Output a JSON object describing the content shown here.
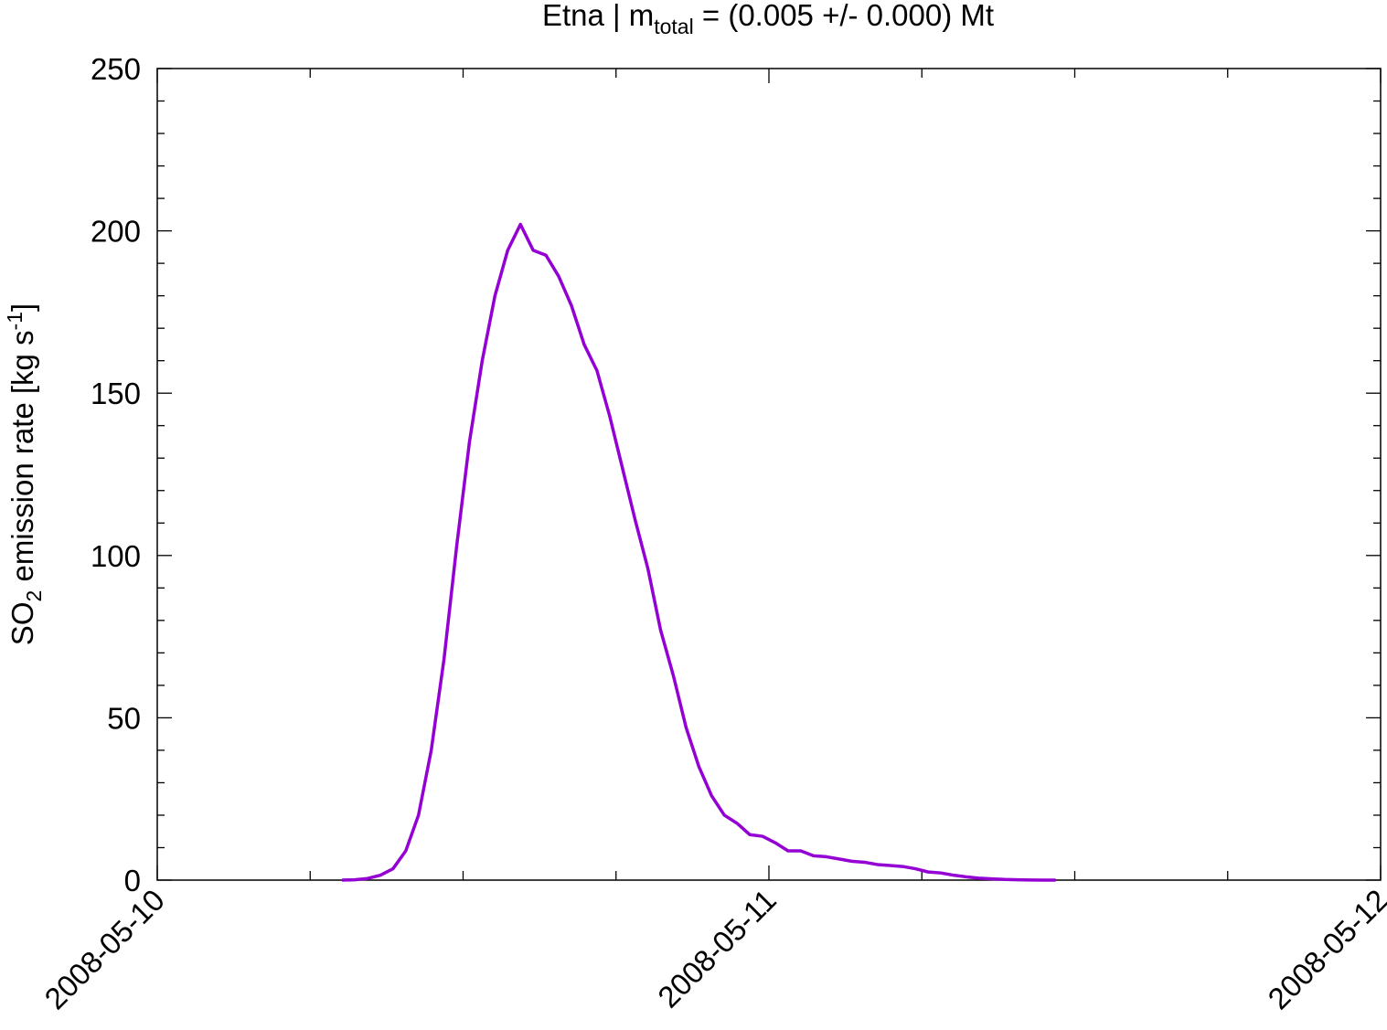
{
  "chart_data": {
    "type": "line",
    "title": [
      "Etna | m",
      "total",
      " = (0.005 +/- 0.000) Mt"
    ],
    "ylabel": [
      "SO",
      "2",
      " emission rate [kg s",
      "-1",
      "]"
    ],
    "color": "#9400d3",
    "x": [
      7.25,
      7.75,
      8.25,
      8.75,
      9.25,
      9.75,
      10.25,
      10.75,
      11.25,
      11.75,
      12.25,
      12.75,
      13.25,
      13.75,
      14.25,
      14.75,
      15.25,
      15.75,
      16.25,
      16.75,
      17.25,
      17.75,
      18.25,
      18.75,
      19.25,
      19.75,
      20.25,
      20.75,
      21.25,
      21.75,
      22.25,
      22.75,
      23.25,
      23.75,
      24.25,
      24.75,
      25.25,
      25.75,
      26.25,
      26.75,
      27.25,
      27.75,
      28.25,
      28.75,
      29.25,
      29.75,
      30.25,
      30.75,
      31.25,
      31.75,
      32.25,
      32.75,
      33.25,
      33.75,
      34.25,
      34.75,
      35.25
    ],
    "values": [
      0,
      0.1,
      0.5,
      1.5,
      3.5,
      9,
      20,
      40,
      68,
      103,
      135,
      160,
      180,
      194,
      202,
      194,
      192.5,
      186,
      177,
      165,
      157,
      143,
      127,
      111,
      96,
      77,
      63,
      47,
      35,
      26,
      20,
      17.5,
      14,
      13.5,
      11.5,
      9,
      9,
      7.5,
      7.2,
      6.5,
      5.8,
      5.5,
      4.8,
      4.5,
      4.2,
      3.5,
      2.5,
      2.2,
      1.5,
      1,
      0.6,
      0.4,
      0.2,
      0.1,
      0.05,
      0,
      0
    ],
    "xlim": [
      0,
      48
    ],
    "xticks": [
      {
        "value": 0,
        "label": "2008-05-10"
      },
      {
        "value": 24,
        "label": "2008-05-11"
      },
      {
        "value": 48,
        "label": "2008-05-12"
      }
    ],
    "xminorticks": [
      6,
      12,
      18,
      30,
      36,
      42
    ],
    "ylim": [
      0,
      250
    ],
    "yticks": [
      0,
      50,
      100,
      150,
      200,
      250
    ],
    "yminorticks": [
      10,
      20,
      30,
      40,
      60,
      70,
      80,
      90,
      110,
      120,
      130,
      140,
      160,
      170,
      180,
      190,
      210,
      220,
      230,
      240
    ]
  }
}
